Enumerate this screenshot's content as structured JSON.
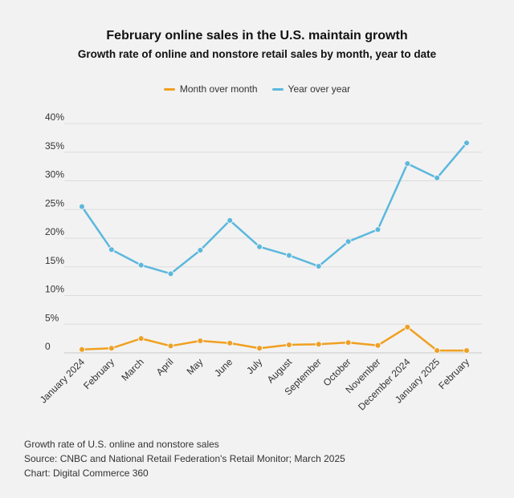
{
  "header": {
    "title": "February online sales in the U.S. maintain growth",
    "subtitle": "Growth rate of online and nonstore retail sales by month, year to date"
  },
  "legend": {
    "items": [
      {
        "label": "Month over month",
        "color": "#f0a020"
      },
      {
        "label": "Year over year",
        "color": "#5bb8dd"
      }
    ]
  },
  "footer": {
    "line1": "Growth rate of U.S. online and nonstore sales",
    "line2": "Source: CNBC and National Retail Federation's Retail Monitor; March 2025",
    "line3": "Chart: Digital Commerce 360"
  },
  "chart_data": {
    "type": "line",
    "categories": [
      "January 2024",
      "February",
      "March",
      "April",
      "May",
      "June",
      "July",
      "August",
      "September",
      "October",
      "November",
      "December 2024",
      "January 2025",
      "February"
    ],
    "series": [
      {
        "name": "Month over month",
        "color": "#f0a020",
        "values": [
          0.6,
          0.8,
          2.5,
          1.2,
          2.1,
          1.7,
          0.8,
          1.4,
          1.5,
          1.8,
          1.3,
          4.5,
          0.4,
          0.4
        ]
      },
      {
        "name": "Year over year",
        "color": "#5bb8dd",
        "values": [
          25.5,
          18.0,
          15.3,
          13.8,
          17.9,
          23.1,
          18.5,
          17.0,
          15.1,
          19.4,
          21.5,
          33.0,
          30.5,
          36.6
        ]
      }
    ],
    "yticks": [
      "0",
      "5%",
      "10%",
      "15%",
      "20%",
      "25%",
      "30%",
      "35%",
      "40%"
    ],
    "ylim": [
      0,
      40
    ],
    "grid": true,
    "legend_position": "top-center"
  }
}
